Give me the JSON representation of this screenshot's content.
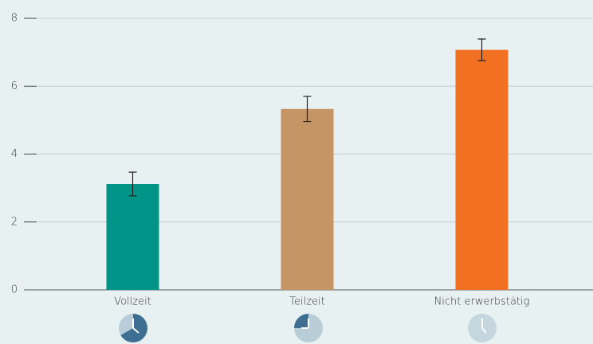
{
  "chart_data": {
    "type": "bar",
    "categories": [
      "Vollzeit",
      "Teilzeit",
      "Nicht erwerbstätig"
    ],
    "values": [
      3.12,
      5.33,
      7.07
    ],
    "errors": [
      0.35,
      0.37,
      0.32
    ],
    "colors": [
      "#009488",
      "#c69565",
      "#f27022"
    ],
    "ylim": [
      0,
      8
    ],
    "yticks": [
      0,
      2,
      4,
      6,
      8
    ],
    "grid": true
  }
}
